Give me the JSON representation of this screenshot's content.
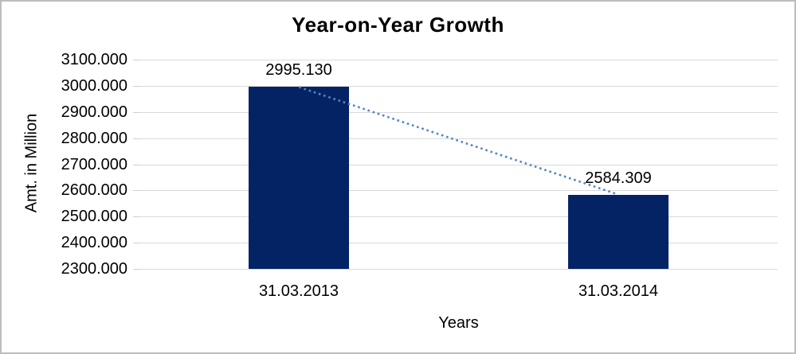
{
  "chart_data": {
    "type": "bar",
    "title": "Year-on-Year Growth",
    "xlabel": "Years",
    "ylabel": "Amt. in Million",
    "categories": [
      "31.03.2013",
      "31.03.2014"
    ],
    "values": [
      2995.13,
      2584.309
    ],
    "data_labels": [
      "2995.130",
      "2584.309"
    ],
    "ylim": [
      2300,
      3100
    ],
    "ytick_step": 100,
    "ytick_labels": [
      "3100.000",
      "3000.000",
      "2900.000",
      "2800.000",
      "2700.000",
      "2600.000",
      "2500.000",
      "2400.000",
      "2300.000"
    ],
    "grid": true,
    "legend_position": "none",
    "trendline": {
      "style": "dotted",
      "color": "#4f86c6"
    },
    "colors": {
      "bar": "#042365",
      "gridline": "#d9d9d9",
      "tick": "#cfcfcf",
      "text": "#000000",
      "frame_border": "#bdbdbd",
      "background": "#ffffff"
    }
  }
}
